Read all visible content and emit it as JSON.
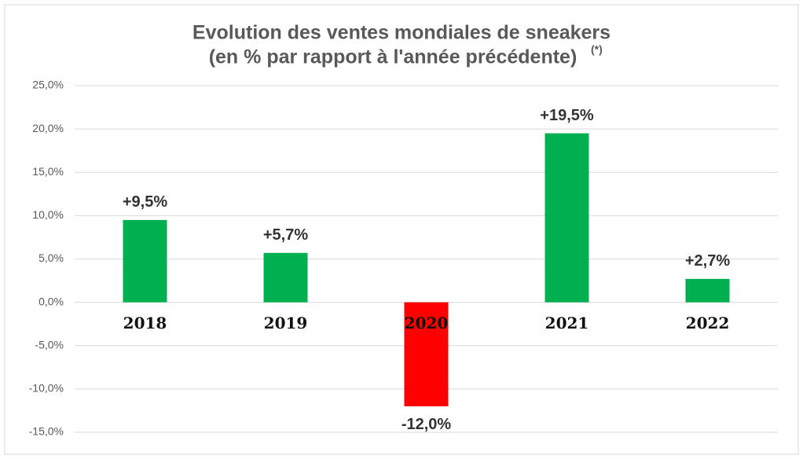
{
  "chart_data": {
    "type": "bar",
    "title": [
      "Evolution des ventes mondiales de sneakers",
      "(en % par rapport à l'année précédente)"
    ],
    "title_note": "(*)",
    "categories": [
      "2018",
      "2019",
      "2020",
      "2021",
      "2022"
    ],
    "values": [
      9.5,
      5.7,
      -12.0,
      19.5,
      2.7
    ],
    "value_labels": [
      "+9,5%",
      "+5,7%",
      "-12,0%",
      "+19,5%",
      "+2,7%"
    ],
    "colors": [
      "#00b050",
      "#00b050",
      "#ff0000",
      "#00b050",
      "#00b050"
    ],
    "ylim": [
      -15,
      25
    ],
    "yticks": [
      {
        "value": -15,
        "label": "-15,0%"
      },
      {
        "value": -10,
        "label": "-10,0%"
      },
      {
        "value": -5,
        "label": "-5,0%"
      },
      {
        "value": 0,
        "label": "0,0%"
      },
      {
        "value": 5,
        "label": "5,0%"
      },
      {
        "value": 10,
        "label": "10,0%"
      },
      {
        "value": 15,
        "label": "15,0%"
      },
      {
        "value": 20,
        "label": "20,0%"
      },
      {
        "value": 25,
        "label": "25,0%"
      }
    ],
    "grid": true
  }
}
